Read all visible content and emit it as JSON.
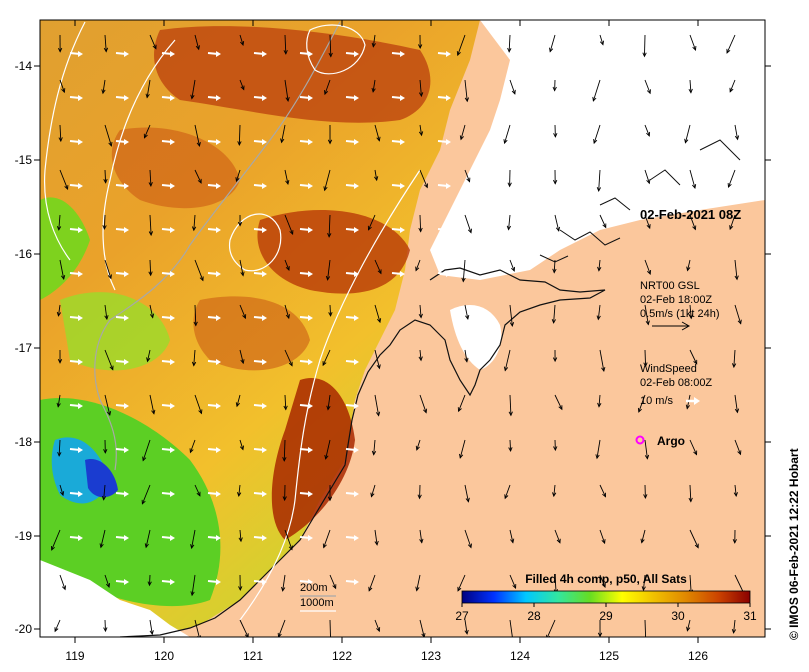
{
  "map": {
    "lon_ticks": [
      "119",
      "120",
      "121",
      "122",
      "123",
      "124",
      "125",
      "126"
    ],
    "lat_ticks": [
      "-14",
      "-15",
      "-16",
      "-17",
      "-18",
      "-19",
      "-20"
    ],
    "colors": {
      "land": "#fbc79c",
      "cloud": "#ffffff",
      "coast": "#111111",
      "isobath_200": "#a8a8a8",
      "isobath_1000": "#ffffff",
      "argo_marker": "#ff00ff",
      "wind_arrow": "#ffffff",
      "current_arrow": "#000000"
    }
  },
  "annotations": {
    "date_label": "02-Feb-2021 08Z",
    "gsl": {
      "line1": "NRT00 GSL",
      "line2": "02-Feb 18:00Z",
      "line3": "0.5m/s (1kt 24h)"
    },
    "wind": {
      "line1": "WindSpeed",
      "line2": "02-Feb 08:00Z",
      "line3": "10 m/s"
    },
    "argo": "Argo",
    "isobaths": [
      "200m",
      "1000m"
    ]
  },
  "colorbar": {
    "title": "Filled 4h comp, p50, All Sats",
    "ticks": [
      "27",
      "28",
      "29",
      "30",
      "31"
    ],
    "stops": [
      "#000080",
      "#0032ff",
      "#00c8ff",
      "#32e6a0",
      "#66dd22",
      "#ffff00",
      "#f0c000",
      "#e08800",
      "#cc4400",
      "#8b0000"
    ]
  },
  "credit": "© IMOS 06-Feb-2021 12:22 Hobart"
}
